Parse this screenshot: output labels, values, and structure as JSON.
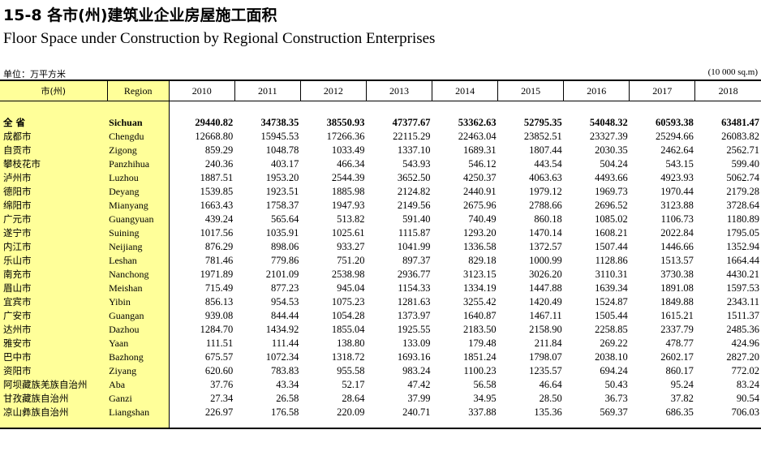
{
  "header": {
    "title_cn": "15-8  各市(州)建筑业企业房屋施工面积",
    "title_en": "Floor Space under Construction by Regional Construction Enterprises",
    "unit_cn": "单位：万平方米",
    "unit_en": "(10 000 sq.m)"
  },
  "columns": {
    "city_cn": "市(州)",
    "region": "Region",
    "years": [
      "2010",
      "2011",
      "2012",
      "2013",
      "2014",
      "2015",
      "2016",
      "2017",
      "2018"
    ]
  },
  "total": {
    "cn": "全  省",
    "en": "Sichuan",
    "values": [
      "29440.82",
      "34738.35",
      "38550.93",
      "47377.67",
      "53362.63",
      "52795.35",
      "54048.32",
      "60593.38",
      "63481.47"
    ]
  },
  "rows": [
    {
      "cn": "成都市",
      "en": "Chengdu",
      "values": [
        "12668.80",
        "15945.53",
        "17266.36",
        "22115.29",
        "22463.04",
        "23852.51",
        "23327.39",
        "25294.66",
        "26083.82"
      ]
    },
    {
      "cn": "自贡市",
      "en": "Zigong",
      "values": [
        "859.29",
        "1048.78",
        "1033.49",
        "1337.10",
        "1689.31",
        "1807.44",
        "2030.35",
        "2462.64",
        "2562.71"
      ]
    },
    {
      "cn": "攀枝花市",
      "en": "Panzhihua",
      "values": [
        "240.36",
        "403.17",
        "466.34",
        "543.93",
        "546.12",
        "443.54",
        "504.24",
        "543.15",
        "599.40"
      ]
    },
    {
      "cn": "泸州市",
      "en": "Luzhou",
      "values": [
        "1887.51",
        "1953.20",
        "2544.39",
        "3652.50",
        "4250.37",
        "4063.63",
        "4493.66",
        "4923.93",
        "5062.74"
      ]
    },
    {
      "cn": "德阳市",
      "en": "Deyang",
      "values": [
        "1539.85",
        "1923.51",
        "1885.98",
        "2124.82",
        "2440.91",
        "1979.12",
        "1969.73",
        "1970.44",
        "2179.28"
      ]
    },
    {
      "cn": "绵阳市",
      "en": "Mianyang",
      "values": [
        "1663.43",
        "1758.37",
        "1947.93",
        "2149.56",
        "2675.96",
        "2788.66",
        "2696.52",
        "3123.88",
        "3728.64"
      ]
    },
    {
      "cn": "广元市",
      "en": "Guangyuan",
      "values": [
        "439.24",
        "565.64",
        "513.82",
        "591.40",
        "740.49",
        "860.18",
        "1085.02",
        "1106.73",
        "1180.89"
      ]
    },
    {
      "cn": "遂宁市",
      "en": "Suining",
      "values": [
        "1017.56",
        "1035.91",
        "1025.61",
        "1115.87",
        "1293.20",
        "1470.14",
        "1608.21",
        "2022.84",
        "1795.05"
      ]
    },
    {
      "cn": "内江市",
      "en": "Neijiang",
      "values": [
        "876.29",
        "898.06",
        "933.27",
        "1041.99",
        "1336.58",
        "1372.57",
        "1507.44",
        "1446.66",
        "1352.94"
      ]
    },
    {
      "cn": "乐山市",
      "en": "Leshan",
      "values": [
        "781.46",
        "779.86",
        "751.20",
        "897.37",
        "829.18",
        "1000.99",
        "1128.86",
        "1513.57",
        "1664.44"
      ]
    },
    {
      "cn": "南充市",
      "en": "Nanchong",
      "values": [
        "1971.89",
        "2101.09",
        "2538.98",
        "2936.77",
        "3123.15",
        "3026.20",
        "3110.31",
        "3730.38",
        "4430.21"
      ]
    },
    {
      "cn": "眉山市",
      "en": "Meishan",
      "values": [
        "715.49",
        "877.23",
        "945.04",
        "1154.33",
        "1334.19",
        "1447.88",
        "1639.34",
        "1891.08",
        "1597.53"
      ]
    },
    {
      "cn": "宜宾市",
      "en": "Yibin",
      "values": [
        "856.13",
        "954.53",
        "1075.23",
        "1281.63",
        "3255.42",
        "1420.49",
        "1524.87",
        "1849.88",
        "2343.11"
      ]
    },
    {
      "cn": "广安市",
      "en": "Guangan",
      "values": [
        "939.08",
        "844.44",
        "1054.28",
        "1373.97",
        "1640.87",
        "1467.11",
        "1505.44",
        "1615.21",
        "1511.37"
      ]
    },
    {
      "cn": "达州市",
      "en": "Dazhou",
      "values": [
        "1284.70",
        "1434.92",
        "1855.04",
        "1925.55",
        "2183.50",
        "2158.90",
        "2258.85",
        "2337.79",
        "2485.36"
      ]
    },
    {
      "cn": "雅安市",
      "en": "Yaan",
      "values": [
        "111.51",
        "111.44",
        "138.80",
        "133.09",
        "179.48",
        "211.84",
        "269.22",
        "478.77",
        "424.96"
      ]
    },
    {
      "cn": "巴中市",
      "en": "Bazhong",
      "values": [
        "675.57",
        "1072.34",
        "1318.72",
        "1693.16",
        "1851.24",
        "1798.07",
        "2038.10",
        "2602.17",
        "2827.20"
      ]
    },
    {
      "cn": "资阳市",
      "en": "Ziyang",
      "values": [
        "620.60",
        "783.83",
        "955.58",
        "983.24",
        "1100.23",
        "1235.57",
        "694.24",
        "860.17",
        "772.02"
      ]
    },
    {
      "cn": "阿坝藏族羌族自治州",
      "en": "Aba",
      "values": [
        "37.76",
        "43.34",
        "52.17",
        "47.42",
        "56.58",
        "46.64",
        "50.43",
        "95.24",
        "83.24"
      ]
    },
    {
      "cn": "甘孜藏族自治州",
      "en": "Ganzi",
      "values": [
        "27.34",
        "26.58",
        "28.64",
        "37.99",
        "34.95",
        "28.50",
        "36.73",
        "37.82",
        "90.54"
      ]
    },
    {
      "cn": "凉山彝族自治州",
      "en": "Liangshan",
      "values": [
        "226.97",
        "176.58",
        "220.09",
        "240.71",
        "337.88",
        "135.36",
        "569.37",
        "686.35",
        "706.03"
      ]
    }
  ]
}
